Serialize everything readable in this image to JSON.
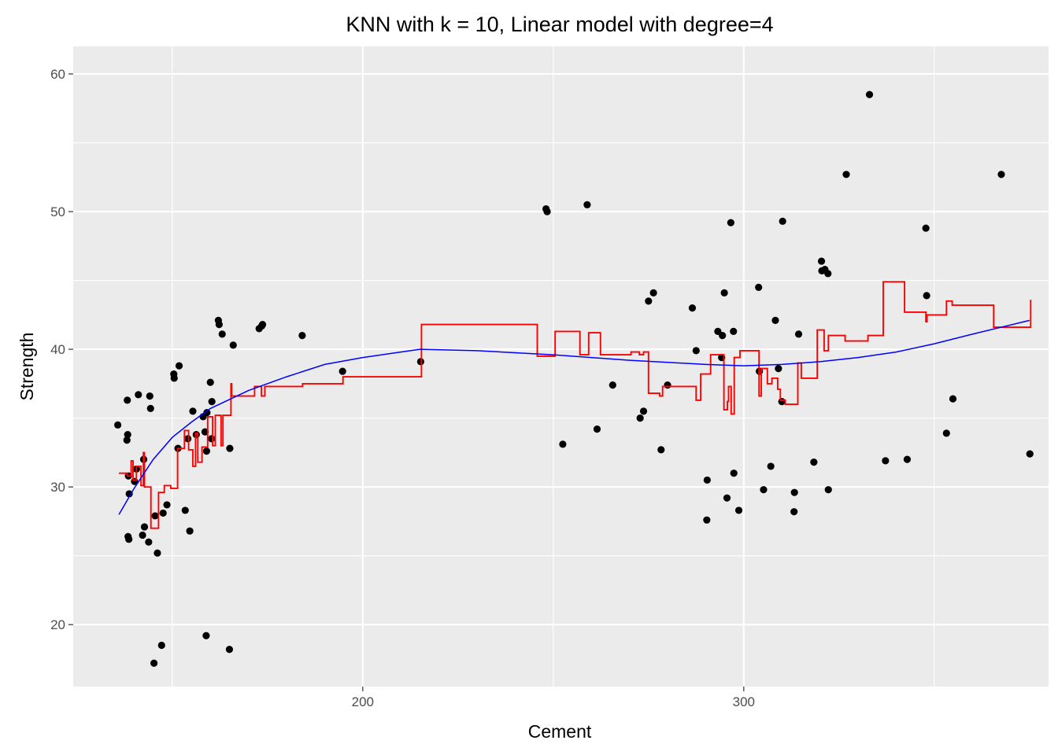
{
  "chart_data": {
    "type": "scatter",
    "title": "KNN with k = 10, Linear model with degree=4",
    "xlabel": "Cement",
    "ylabel": "Strength",
    "xlim": [
      124,
      380
    ],
    "ylim": [
      15.5,
      62
    ],
    "x_ticks": [
      200,
      300
    ],
    "y_ticks": [
      20,
      30,
      40,
      50,
      60
    ],
    "grid": true,
    "legend": "none",
    "colors": {
      "panel": "#ebebeb",
      "grid": "#ffffff",
      "points": "#000000",
      "knn_line": "#ff0000",
      "poly_line": "#0000ff"
    },
    "series": [
      {
        "kind": "points",
        "values": [
          [
            135.7,
            34.5
          ],
          [
            138.2,
            36.3
          ],
          [
            138.3,
            33.8
          ],
          [
            138.1,
            33.4
          ],
          [
            138.5,
            30.8
          ],
          [
            138.7,
            29.5
          ],
          [
            138.4,
            26.4
          ],
          [
            138.6,
            26.2
          ],
          [
            140.1,
            30.4
          ],
          [
            140.6,
            31.3
          ],
          [
            141.1,
            36.7
          ],
          [
            142.2,
            26.5
          ],
          [
            142.7,
            27.1
          ],
          [
            142.5,
            32.0
          ],
          [
            143.8,
            26.0
          ],
          [
            144.1,
            36.6
          ],
          [
            144.3,
            35.7
          ],
          [
            145.2,
            17.2
          ],
          [
            145.5,
            27.9
          ],
          [
            146.1,
            25.2
          ],
          [
            147.6,
            28.1
          ],
          [
            147.2,
            18.5
          ],
          [
            148.6,
            28.7
          ],
          [
            150.4,
            38.2
          ],
          [
            150.5,
            37.9
          ],
          [
            151.5,
            32.8
          ],
          [
            151.8,
            38.8
          ],
          [
            153.4,
            28.3
          ],
          [
            154.6,
            26.8
          ],
          [
            154.1,
            33.5
          ],
          [
            155.4,
            35.5
          ],
          [
            156.3,
            33.8
          ],
          [
            158.1,
            35.1
          ],
          [
            158.6,
            34.0
          ],
          [
            159.0,
            32.6
          ],
          [
            159.1,
            35.4
          ],
          [
            158.9,
            19.2
          ],
          [
            160.0,
            37.6
          ],
          [
            160.4,
            36.2
          ],
          [
            160.3,
            33.5
          ],
          [
            162.1,
            42.1
          ],
          [
            162.3,
            41.8
          ],
          [
            163.1,
            41.1
          ],
          [
            165.1,
            32.8
          ],
          [
            166.0,
            40.3
          ],
          [
            165.0,
            18.2
          ],
          [
            172.8,
            41.5
          ],
          [
            173.5,
            41.7
          ],
          [
            173.7,
            41.8
          ],
          [
            184.1,
            41.0
          ],
          [
            194.7,
            38.4
          ],
          [
            215.2,
            39.1
          ],
          [
            248.1,
            50.2
          ],
          [
            248.4,
            50.0
          ],
          [
            252.5,
            33.1
          ],
          [
            258.9,
            50.5
          ],
          [
            261.5,
            34.2
          ],
          [
            265.6,
            37.4
          ],
          [
            272.8,
            35.0
          ],
          [
            273.7,
            35.5
          ],
          [
            275.0,
            43.5
          ],
          [
            276.3,
            44.1
          ],
          [
            278.3,
            32.7
          ],
          [
            280.0,
            37.4
          ],
          [
            286.5,
            43.0
          ],
          [
            287.5,
            39.9
          ],
          [
            290.4,
            30.5
          ],
          [
            290.3,
            27.6
          ],
          [
            293.2,
            41.3
          ],
          [
            294.4,
            41.0
          ],
          [
            294.2,
            39.4
          ],
          [
            294.9,
            44.1
          ],
          [
            295.6,
            29.2
          ],
          [
            296.6,
            49.2
          ],
          [
            297.4,
            31.0
          ],
          [
            297.3,
            41.3
          ],
          [
            298.7,
            28.3
          ],
          [
            303.9,
            44.5
          ],
          [
            304.1,
            38.4
          ],
          [
            305.2,
            29.8
          ],
          [
            307.1,
            31.5
          ],
          [
            308.3,
            42.1
          ],
          [
            309.1,
            38.6
          ],
          [
            310.2,
            49.3
          ],
          [
            310.0,
            36.2
          ],
          [
            313.3,
            29.6
          ],
          [
            313.2,
            28.2
          ],
          [
            314.4,
            41.1
          ],
          [
            318.4,
            31.8
          ],
          [
            320.4,
            46.4
          ],
          [
            320.5,
            45.7
          ],
          [
            321.3,
            45.8
          ],
          [
            322.1,
            45.5
          ],
          [
            322.2,
            29.8
          ],
          [
            326.9,
            52.7
          ],
          [
            333.0,
            58.5
          ],
          [
            337.2,
            31.9
          ],
          [
            342.9,
            32.0
          ],
          [
            347.8,
            48.8
          ],
          [
            348.0,
            43.9
          ],
          [
            353.2,
            33.9
          ],
          [
            354.9,
            36.4
          ],
          [
            367.6,
            52.7
          ],
          [
            375.1,
            32.4
          ]
        ]
      },
      {
        "kind": "knn_step_line",
        "values": [
          [
            136.0,
            31.0
          ],
          [
            138.2,
            31.0
          ],
          [
            138.2,
            30.8
          ],
          [
            139.2,
            30.8
          ],
          [
            139.2,
            31.9
          ],
          [
            139.7,
            31.9
          ],
          [
            139.7,
            30.5
          ],
          [
            140.6,
            30.5
          ],
          [
            140.6,
            31.5
          ],
          [
            141.8,
            31.5
          ],
          [
            141.8,
            30.1
          ],
          [
            142.4,
            30.1
          ],
          [
            142.4,
            32.5
          ],
          [
            142.7,
            32.5
          ],
          [
            142.7,
            30.0
          ],
          [
            144.4,
            30.0
          ],
          [
            144.4,
            27.0
          ],
          [
            146.4,
            27.0
          ],
          [
            146.4,
            29.6
          ],
          [
            147.9,
            29.6
          ],
          [
            147.9,
            30.1
          ],
          [
            149.6,
            30.1
          ],
          [
            149.6,
            29.9
          ],
          [
            151.4,
            29.9
          ],
          [
            151.4,
            32.8
          ],
          [
            153.2,
            32.8
          ],
          [
            153.2,
            34.1
          ],
          [
            154.3,
            34.1
          ],
          [
            154.3,
            32.7
          ],
          [
            155.4,
            32.7
          ],
          [
            155.4,
            31.5
          ],
          [
            156.1,
            31.5
          ],
          [
            156.1,
            33.9
          ],
          [
            156.7,
            33.9
          ],
          [
            156.7,
            31.8
          ],
          [
            157.8,
            31.8
          ],
          [
            157.8,
            32.9
          ],
          [
            159.3,
            32.9
          ],
          [
            159.3,
            35.1
          ],
          [
            160.6,
            35.1
          ],
          [
            160.6,
            33.0
          ],
          [
            161.3,
            33.0
          ],
          [
            161.3,
            35.2
          ],
          [
            162.8,
            35.2
          ],
          [
            162.8,
            33.0
          ],
          [
            163.3,
            33.0
          ],
          [
            163.3,
            35.2
          ],
          [
            165.4,
            35.2
          ],
          [
            165.4,
            37.5
          ],
          [
            165.6,
            37.5
          ],
          [
            165.6,
            36.6
          ],
          [
            171.6,
            36.6
          ],
          [
            171.6,
            37.3
          ],
          [
            173.4,
            37.3
          ],
          [
            173.4,
            36.6
          ],
          [
            174.3,
            36.6
          ],
          [
            174.3,
            37.3
          ],
          [
            184.2,
            37.3
          ],
          [
            184.2,
            37.5
          ],
          [
            194.8,
            37.5
          ],
          [
            194.8,
            38.0
          ],
          [
            215.4,
            38.0
          ],
          [
            215.4,
            41.8
          ],
          [
            245.8,
            41.8
          ],
          [
            245.8,
            39.5
          ],
          [
            250.5,
            39.5
          ],
          [
            250.5,
            41.3
          ],
          [
            257.0,
            41.3
          ],
          [
            257.0,
            39.6
          ],
          [
            259.3,
            39.6
          ],
          [
            259.3,
            41.2
          ],
          [
            262.4,
            41.2
          ],
          [
            262.4,
            39.6
          ],
          [
            270.4,
            39.6
          ],
          [
            270.4,
            39.8
          ],
          [
            272.6,
            39.8
          ],
          [
            272.6,
            39.6
          ],
          [
            273.7,
            39.6
          ],
          [
            273.7,
            39.8
          ],
          [
            275.0,
            39.8
          ],
          [
            275.0,
            36.8
          ],
          [
            277.9,
            36.8
          ],
          [
            277.9,
            36.6
          ],
          [
            278.7,
            36.6
          ],
          [
            278.7,
            37.3
          ],
          [
            287.5,
            37.3
          ],
          [
            287.5,
            36.3
          ],
          [
            288.7,
            36.3
          ],
          [
            288.7,
            38.2
          ],
          [
            291.3,
            38.2
          ],
          [
            291.3,
            39.6
          ],
          [
            294.8,
            39.6
          ],
          [
            294.8,
            35.6
          ],
          [
            295.7,
            35.6
          ],
          [
            295.7,
            36.2
          ],
          [
            296.0,
            36.2
          ],
          [
            296.0,
            37.3
          ],
          [
            296.7,
            37.3
          ],
          [
            296.7,
            35.3
          ],
          [
            297.5,
            35.3
          ],
          [
            297.5,
            39.4
          ],
          [
            299.0,
            39.4
          ],
          [
            299.0,
            39.9
          ],
          [
            304.0,
            39.9
          ],
          [
            304.0,
            36.6
          ],
          [
            304.6,
            36.6
          ],
          [
            304.6,
            38.6
          ],
          [
            306.2,
            38.6
          ],
          [
            306.2,
            37.5
          ],
          [
            307.4,
            37.5
          ],
          [
            307.4,
            37.9
          ],
          [
            308.9,
            37.9
          ],
          [
            308.9,
            37.1
          ],
          [
            309.6,
            37.1
          ],
          [
            309.6,
            36.3
          ],
          [
            310.9,
            36.3
          ],
          [
            310.9,
            36.0
          ],
          [
            314.2,
            36.0
          ],
          [
            314.2,
            39.0
          ],
          [
            315.1,
            39.0
          ],
          [
            315.1,
            37.9
          ],
          [
            319.3,
            37.9
          ],
          [
            319.3,
            41.4
          ],
          [
            321.1,
            41.4
          ],
          [
            321.1,
            39.9
          ],
          [
            322.2,
            39.9
          ],
          [
            322.2,
            41.0
          ],
          [
            326.6,
            41.0
          ],
          [
            326.6,
            40.6
          ],
          [
            332.6,
            40.6
          ],
          [
            332.6,
            41.0
          ],
          [
            336.6,
            41.0
          ],
          [
            336.6,
            44.9
          ],
          [
            342.2,
            44.9
          ],
          [
            342.2,
            42.7
          ],
          [
            347.8,
            42.7
          ],
          [
            347.8,
            42.0
          ],
          [
            348.1,
            42.0
          ],
          [
            348.1,
            42.5
          ],
          [
            353.2,
            42.5
          ],
          [
            353.2,
            43.5
          ],
          [
            354.7,
            43.5
          ],
          [
            354.7,
            43.2
          ],
          [
            365.6,
            43.2
          ],
          [
            365.6,
            41.6
          ],
          [
            375.3,
            41.6
          ],
          [
            375.3,
            43.6
          ]
        ]
      },
      {
        "kind": "polynomial_fit_line",
        "values": [
          [
            136.0,
            28.0
          ],
          [
            140.0,
            29.9
          ],
          [
            145.0,
            32.0
          ],
          [
            150.0,
            33.6
          ],
          [
            155.0,
            34.7
          ],
          [
            160.0,
            35.7
          ],
          [
            170.0,
            37.0
          ],
          [
            180.0,
            38.0
          ],
          [
            190.0,
            38.9
          ],
          [
            200.0,
            39.4
          ],
          [
            210.0,
            39.8
          ],
          [
            215.0,
            40.0
          ],
          [
            230.0,
            39.9
          ],
          [
            250.0,
            39.6
          ],
          [
            270.0,
            39.2
          ],
          [
            290.0,
            38.9
          ],
          [
            300.0,
            38.8
          ],
          [
            310.0,
            38.9
          ],
          [
            320.0,
            39.1
          ],
          [
            330.0,
            39.4
          ],
          [
            340.0,
            39.8
          ],
          [
            350.0,
            40.4
          ],
          [
            360.0,
            41.1
          ],
          [
            375.0,
            42.1
          ]
        ]
      }
    ]
  }
}
